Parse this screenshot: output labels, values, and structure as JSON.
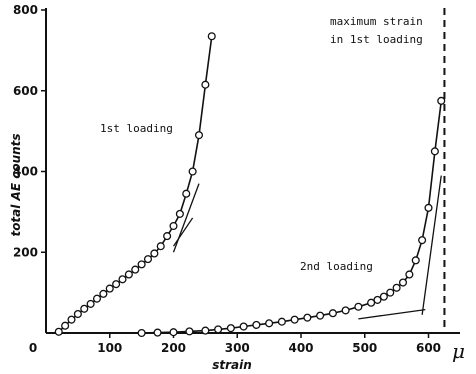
{
  "chart_data": {
    "type": "scatter",
    "title": "",
    "xlabel": "strain",
    "ylabel": "total AE counts",
    "x_unit_label": "μ",
    "xlim": [
      0,
      640
    ],
    "ylim": [
      0,
      800
    ],
    "x_ticks": [
      "0",
      "100",
      "200",
      "300",
      "400",
      "500",
      "600"
    ],
    "y_ticks": [
      "200",
      "400",
      "600",
      "800"
    ],
    "grid": false,
    "annotations": [
      {
        "text": "1st loading"
      },
      {
        "text": "2nd loading"
      },
      {
        "text": "maximum strain"
      },
      {
        "text": "in 1st loading"
      }
    ],
    "max_strain_1st_loading": 625,
    "series": [
      {
        "name": "1st loading",
        "x": [
          20,
          30,
          40,
          50,
          60,
          70,
          80,
          90,
          100,
          110,
          120,
          130,
          140,
          150,
          160,
          170,
          180,
          190,
          200,
          210,
          220,
          230,
          240,
          250,
          260
        ],
        "y": [
          3,
          18,
          33,
          47,
          60,
          72,
          85,
          97,
          110,
          121,
          133,
          145,
          157,
          170,
          183,
          197,
          215,
          240,
          265,
          295,
          345,
          400,
          490,
          615,
          735
        ]
      },
      {
        "name": "2nd loading",
        "x": [
          150,
          175,
          200,
          225,
          250,
          270,
          290,
          310,
          330,
          350,
          370,
          390,
          410,
          430,
          450,
          470,
          490,
          510,
          520,
          530,
          540,
          550,
          560,
          570,
          580,
          590,
          600,
          610,
          620
        ],
        "y": [
          0,
          1,
          2,
          4,
          6,
          9,
          12,
          16,
          20,
          24,
          28,
          33,
          38,
          43,
          49,
          56,
          65,
          75,
          82,
          90,
          100,
          112,
          125,
          145,
          180,
          230,
          310,
          450,
          575
        ]
      }
    ],
    "tangent_lines": [
      {
        "x": [
          200,
          240
        ],
        "y": [
          200,
          370
        ]
      },
      {
        "x": [
          200,
          230
        ],
        "y": [
          215,
          285
        ]
      },
      {
        "x": [
          490,
          595
        ],
        "y": [
          35,
          58
        ]
      },
      {
        "x": [
          590,
          620
        ],
        "y": [
          45,
          390
        ]
      }
    ]
  }
}
